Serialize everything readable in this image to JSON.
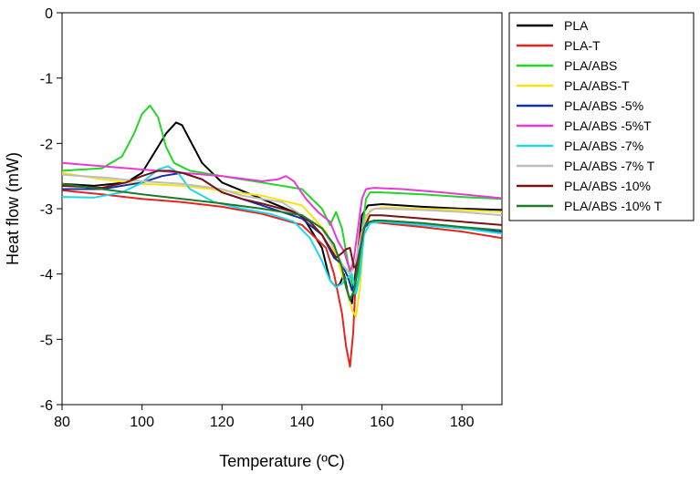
{
  "chart_data": {
    "type": "line",
    "title": "",
    "xlabel": "Temperature (ºC)",
    "ylabel": "Heat flow (mW)",
    "xlim": [
      80,
      190
    ],
    "ylim": [
      -6,
      0
    ],
    "xticks": [
      80,
      100,
      120,
      140,
      160,
      180
    ],
    "yticks": [
      0,
      -1,
      -2,
      -3,
      -4,
      -5,
      -6
    ],
    "xtick_labels": [
      "80",
      "100",
      "120",
      "140",
      "160",
      "180"
    ],
    "ytick_labels": [
      "0",
      "-1",
      "-2",
      "-3",
      "-4",
      "-5",
      "-6"
    ],
    "grid": false,
    "legend_position": "right",
    "series": [
      {
        "name": "PLA",
        "color": "#000000",
        "x": [
          80,
          88,
          96,
          100,
          103,
          106,
          108.5,
          110,
          112,
          115,
          120,
          130,
          140,
          145,
          147,
          148.5,
          149.5,
          150.5,
          151.5,
          152.5,
          153.5,
          155,
          156.5,
          160,
          170,
          180,
          190
        ],
        "y": [
          -2.62,
          -2.65,
          -2.6,
          -2.45,
          -2.15,
          -1.85,
          -1.68,
          -1.72,
          -1.95,
          -2.3,
          -2.6,
          -2.85,
          -3.1,
          -3.6,
          -4.1,
          -4.2,
          -4.15,
          -4.0,
          -4.3,
          -4.45,
          -3.9,
          -3.1,
          -2.95,
          -2.93,
          -2.97,
          -3.0,
          -3.02
        ]
      },
      {
        "name": "PLA-T",
        "color": "#e8231c",
        "x": [
          80,
          90,
          100,
          110,
          120,
          130,
          140,
          146,
          148,
          150,
          151,
          152,
          152.8,
          153.5,
          154.5,
          156,
          160,
          170,
          180,
          190
        ],
        "y": [
          -2.72,
          -2.78,
          -2.85,
          -2.9,
          -2.97,
          -3.08,
          -3.25,
          -3.6,
          -4.0,
          -4.6,
          -5.1,
          -5.42,
          -4.9,
          -4.0,
          -3.4,
          -3.2,
          -3.22,
          -3.28,
          -3.35,
          -3.45
        ]
      },
      {
        "name": "PLA/ABS",
        "color": "#22d52b",
        "x": [
          80,
          90,
          95,
          98,
          100,
          102,
          104,
          106,
          108,
          112,
          120,
          130,
          140,
          145,
          147,
          148.5,
          150,
          152,
          153,
          154,
          155,
          156,
          157,
          160,
          170,
          180,
          190
        ],
        "y": [
          -2.42,
          -2.38,
          -2.2,
          -1.85,
          -1.55,
          -1.42,
          -1.6,
          -2.05,
          -2.3,
          -2.42,
          -2.5,
          -2.6,
          -2.7,
          -3.0,
          -3.25,
          -3.05,
          -3.3,
          -4.0,
          -4.3,
          -4.1,
          -3.4,
          -2.85,
          -2.75,
          -2.75,
          -2.78,
          -2.82,
          -2.85
        ]
      },
      {
        "name": "PLA/ABS-T",
        "color": "#f5e411",
        "x": [
          80,
          90,
          100,
          110,
          120,
          130,
          140,
          146,
          149,
          151,
          152.5,
          153.5,
          154.5,
          155.5,
          157,
          160,
          170,
          180,
          190
        ],
        "y": [
          -2.45,
          -2.55,
          -2.62,
          -2.65,
          -2.72,
          -2.8,
          -2.95,
          -3.35,
          -3.8,
          -4.2,
          -4.55,
          -4.65,
          -4.2,
          -3.3,
          -3.02,
          -2.98,
          -3.0,
          -3.02,
          -3.05
        ]
      },
      {
        "name": "PLA/ABS -5%",
        "color": "#1030a8",
        "x": [
          80,
          90,
          100,
          105,
          110,
          115,
          120,
          130,
          140,
          145,
          148,
          150,
          151.5,
          152.5,
          153.5,
          154.5,
          155.5,
          157,
          160,
          170,
          180,
          190
        ],
        "y": [
          -2.7,
          -2.7,
          -2.6,
          -2.5,
          -2.45,
          -2.55,
          -2.75,
          -2.95,
          -3.15,
          -3.4,
          -3.75,
          -3.85,
          -4.05,
          -4.25,
          -4.05,
          -3.6,
          -3.3,
          -3.2,
          -3.2,
          -3.25,
          -3.3,
          -3.35
        ]
      },
      {
        "name": "PLA/ABS -5%T",
        "color": "#ea38d8",
        "x": [
          80,
          90,
          100,
          110,
          120,
          130,
          134,
          136,
          138,
          141,
          144,
          147,
          149,
          150.5,
          151.5,
          152.3,
          153,
          154,
          155,
          156,
          158,
          165,
          175,
          190
        ],
        "y": [
          -2.3,
          -2.35,
          -2.4,
          -2.45,
          -2.5,
          -2.58,
          -2.55,
          -2.5,
          -2.58,
          -2.85,
          -3.05,
          -3.2,
          -3.5,
          -3.65,
          -3.85,
          -3.95,
          -3.75,
          -3.3,
          -2.85,
          -2.7,
          -2.68,
          -2.7,
          -2.75,
          -2.84
        ]
      },
      {
        "name": "PLA/ABS -7%",
        "color": "#1ed7ec",
        "x": [
          80,
          88,
          95,
          100,
          104,
          106.5,
          109,
          112,
          118,
          125,
          132,
          138,
          142,
          145,
          147,
          148.5,
          150,
          151.5,
          152.5,
          153.5,
          154.5,
          155.5,
          157,
          160,
          170,
          180,
          190
        ],
        "y": [
          -2.82,
          -2.83,
          -2.75,
          -2.6,
          -2.4,
          -2.35,
          -2.45,
          -2.7,
          -2.9,
          -3.0,
          -3.08,
          -3.2,
          -3.45,
          -3.8,
          -4.1,
          -4.2,
          -4.15,
          -4.05,
          -4.0,
          -4.3,
          -4.0,
          -3.4,
          -3.22,
          -3.2,
          -3.25,
          -3.3,
          -3.38
        ]
      },
      {
        "name": "PLA/ABS -7% T",
        "color": "#bdbdbd",
        "x": [
          80,
          90,
          100,
          110,
          120,
          125,
          130,
          135,
          140,
          145,
          148,
          150,
          152,
          153,
          154.5,
          156,
          158,
          160,
          170,
          180,
          190
        ],
        "y": [
          -2.48,
          -2.52,
          -2.58,
          -2.62,
          -2.7,
          -2.8,
          -2.85,
          -2.9,
          -3.1,
          -3.3,
          -3.6,
          -3.85,
          -4.0,
          -3.9,
          -3.5,
          -3.1,
          -3.0,
          -3.0,
          -3.02,
          -3.05,
          -3.1
        ]
      },
      {
        "name": "PLA/ABS -10%",
        "color": "#7a1212",
        "x": [
          80,
          90,
          96,
          100,
          104,
          107,
          110,
          115,
          120,
          125,
          130,
          138,
          142,
          145,
          147,
          148.5,
          150,
          151,
          152,
          153,
          154,
          155.5,
          157,
          160,
          170,
          180,
          190
        ],
        "y": [
          -2.65,
          -2.68,
          -2.6,
          -2.5,
          -2.42,
          -2.42,
          -2.45,
          -2.55,
          -2.75,
          -2.85,
          -2.92,
          -3.05,
          -3.2,
          -3.4,
          -3.6,
          -3.75,
          -3.68,
          -3.62,
          -3.6,
          -3.9,
          -3.85,
          -3.3,
          -3.1,
          -3.1,
          -3.15,
          -3.2,
          -3.25
        ]
      },
      {
        "name": "PLA/ABS -10% T",
        "color": "#1e7a2a",
        "x": [
          80,
          90,
          100,
          110,
          120,
          130,
          140,
          145,
          148,
          150,
          151,
          152,
          153,
          154,
          155,
          156,
          158,
          160,
          170,
          180,
          190
        ],
        "y": [
          -2.62,
          -2.7,
          -2.78,
          -2.85,
          -2.92,
          -3.0,
          -3.1,
          -3.3,
          -3.55,
          -3.9,
          -4.2,
          -4.4,
          -4.25,
          -3.9,
          -3.45,
          -3.22,
          -3.18,
          -3.18,
          -3.22,
          -3.28,
          -3.33
        ]
      }
    ]
  }
}
